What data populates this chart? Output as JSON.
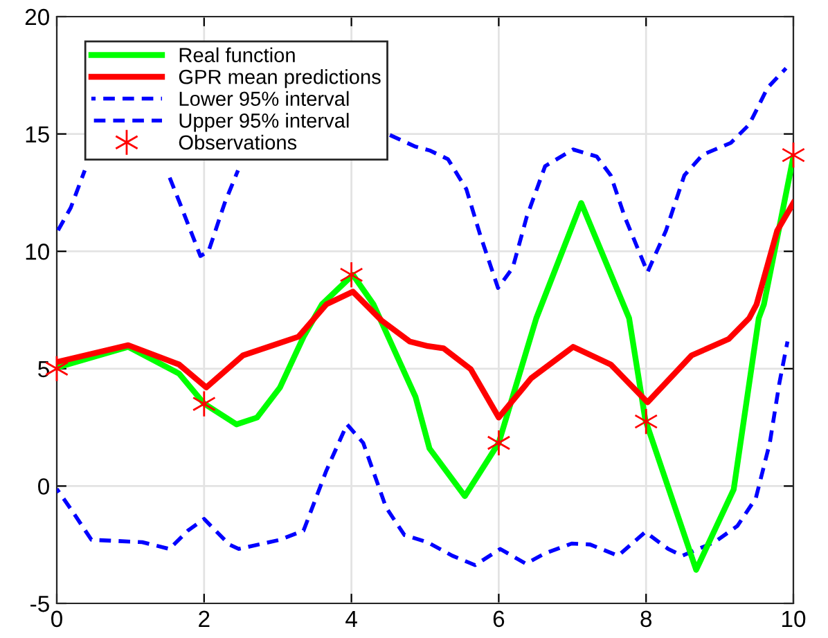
{
  "chart_data": {
    "type": "line",
    "xlim": [
      0,
      10
    ],
    "ylim": [
      -5,
      20
    ],
    "xticks": [
      0,
      2,
      4,
      6,
      8,
      10
    ],
    "yticks": [
      -5,
      0,
      5,
      10,
      15,
      20
    ],
    "grid": true,
    "legend": "top left",
    "series": [
      {
        "name": "Real function",
        "color": "#00ff00",
        "line_style": "solid",
        "marker": "none",
        "x": [
          0,
          0.97,
          1.66,
          2.0,
          2.44,
          2.72,
          3.03,
          3.35,
          3.6,
          4.02,
          4.3,
          4.87,
          5.06,
          5.54,
          6.0,
          6.51,
          7.12,
          7.77,
          7.99,
          8.68,
          9.19,
          9.53,
          9.6,
          10
        ],
        "values": [
          5.05,
          5.93,
          4.79,
          3.51,
          2.63,
          2.92,
          4.2,
          6.36,
          7.74,
          9.0,
          7.74,
          3.8,
          1.6,
          -0.43,
          1.84,
          7.15,
          12.06,
          7.15,
          2.82,
          -3.57,
          -0.14,
          7.15,
          7.74,
          14.03
        ]
      },
      {
        "name": "GPR mean predictions",
        "color": "#ff0000",
        "line_style": "solid",
        "marker": "none",
        "x": [
          0,
          0.97,
          1.66,
          2.03,
          2.53,
          2.9,
          3.28,
          3.66,
          4.02,
          4.41,
          4.79,
          5.04,
          5.25,
          5.62,
          6.0,
          6.44,
          7.01,
          7.52,
          8.02,
          8.62,
          9.12,
          9.4,
          9.5,
          9.78,
          10
        ],
        "values": [
          5.28,
          6.0,
          5.18,
          4.2,
          5.57,
          5.96,
          6.36,
          7.74,
          8.28,
          7.05,
          6.16,
          5.96,
          5.87,
          4.98,
          2.92,
          4.59,
          5.93,
          5.18,
          3.57,
          5.57,
          6.26,
          7.15,
          7.74,
          10.88,
          12.06
        ]
      },
      {
        "name": "Lower 95% interval",
        "color": "#0000ff",
        "line_style": "dashed",
        "marker": "none",
        "x": [
          0,
          0.22,
          0.47,
          1.16,
          1.53,
          1.78,
          2.0,
          2.34,
          2.47,
          3.03,
          3.35,
          3.66,
          3.94,
          4.16,
          4.47,
          4.72,
          5.03,
          5.37,
          5.68,
          6.02,
          6.37,
          6.62,
          6.99,
          7.24,
          7.62,
          7.99,
          8.3,
          8.49,
          8.93,
          9.24,
          9.49,
          9.68,
          9.81,
          9.92
        ],
        "values": [
          -0.12,
          -1.11,
          -2.29,
          -2.39,
          -2.68,
          -1.9,
          -1.4,
          -2.49,
          -2.68,
          -2.29,
          -1.9,
          0.66,
          2.63,
          1.84,
          -0.91,
          -2.09,
          -2.39,
          -2.97,
          -3.37,
          -2.68,
          -3.31,
          -2.88,
          -2.45,
          -2.49,
          -2.97,
          -1.96,
          -2.68,
          -2.97,
          -2.39,
          -1.7,
          -0.52,
          1.84,
          4.39,
          6.16
        ]
      },
      {
        "name": "Upper 95% interval",
        "color": "#0000ff",
        "line_style": "dashed",
        "marker": "none",
        "x": [
          0,
          0.19,
          0.38,
          1.0,
          1.52,
          1.67,
          1.95,
          2.06,
          2.28,
          2.46,
          3.5,
          4.49,
          4.87,
          5.06,
          5.31,
          5.56,
          5.75,
          5.99,
          6.19,
          6.38,
          6.63,
          7.01,
          7.33,
          7.52,
          7.71,
          8.02,
          8.27,
          8.52,
          8.77,
          9.15,
          9.4,
          9.65,
          9.9
        ],
        "values": [
          10.8,
          11.86,
          13.45,
          null,
          13.24,
          12.06,
          9.8,
          10.0,
          12.06,
          13.45,
          null,
          15.0,
          14.46,
          14.3,
          13.93,
          12.65,
          10.68,
          8.44,
          9.3,
          11.47,
          13.63,
          14.34,
          14.04,
          13.24,
          11.47,
          9.11,
          10.88,
          13.24,
          14.12,
          14.62,
          15.4,
          16.97,
          17.8
        ]
      },
      {
        "name": "Observations",
        "type": "scatter",
        "color": "#ff0000",
        "marker": "cross",
        "x": [
          0,
          2,
          4,
          6,
          8,
          10
        ],
        "values": [
          5.0,
          3.5,
          9.0,
          1.84,
          2.75,
          14.1
        ]
      }
    ]
  }
}
